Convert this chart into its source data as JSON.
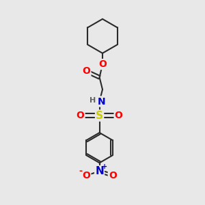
{
  "bg_color": "#e8e8e8",
  "bond_color": "#2a2a2a",
  "bond_width": 1.5,
  "atom_colors": {
    "O": "#ff0000",
    "N": "#0000cc",
    "S": "#cccc00",
    "H": "#606060",
    "C": "#2a2a2a"
  },
  "fig_size": [
    3.0,
    3.0
  ],
  "dpi": 100,
  "xlim": [
    0,
    10
  ],
  "ylim": [
    0,
    10
  ],
  "font_size_atom": 10,
  "font_size_small": 8,
  "font_size_nitro": 7
}
